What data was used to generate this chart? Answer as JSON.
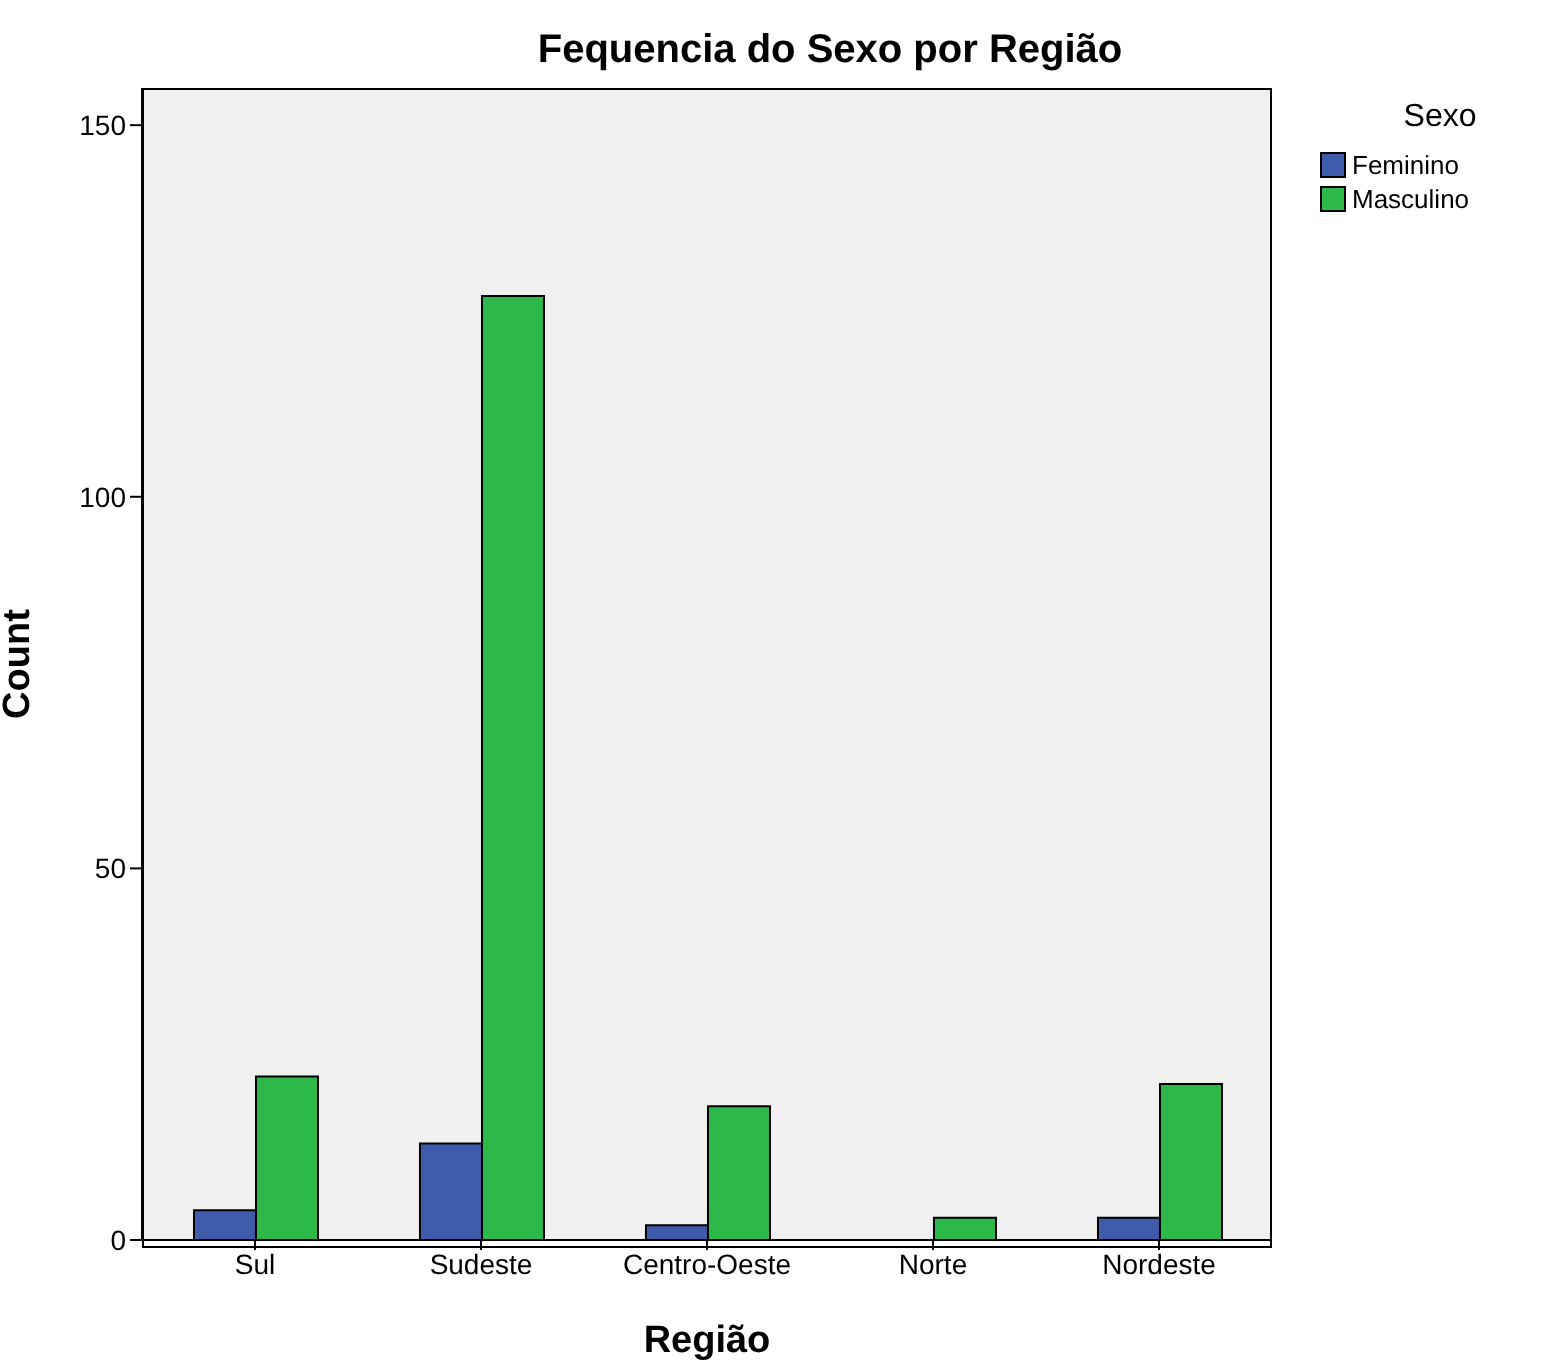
{
  "chart_data": {
    "type": "bar",
    "title": "Fequencia do Sexo por Região",
    "xlabel": "Região",
    "ylabel": "Count",
    "legend_title": "Sexo",
    "categories": [
      "Sul",
      "Sudeste",
      "Centro-Oeste",
      "Norte",
      "Nordeste"
    ],
    "series": [
      {
        "name": "Feminino",
        "color": "#3f5bab",
        "values": [
          4,
          13,
          2,
          0,
          3
        ]
      },
      {
        "name": "Masculino",
        "color": "#2db84a",
        "values": [
          22,
          127,
          18,
          3,
          21
        ]
      }
    ],
    "ylim": [
      0,
      155
    ],
    "yticks": [
      0,
      50,
      100,
      150
    ],
    "grid": false,
    "legend": "top right"
  }
}
